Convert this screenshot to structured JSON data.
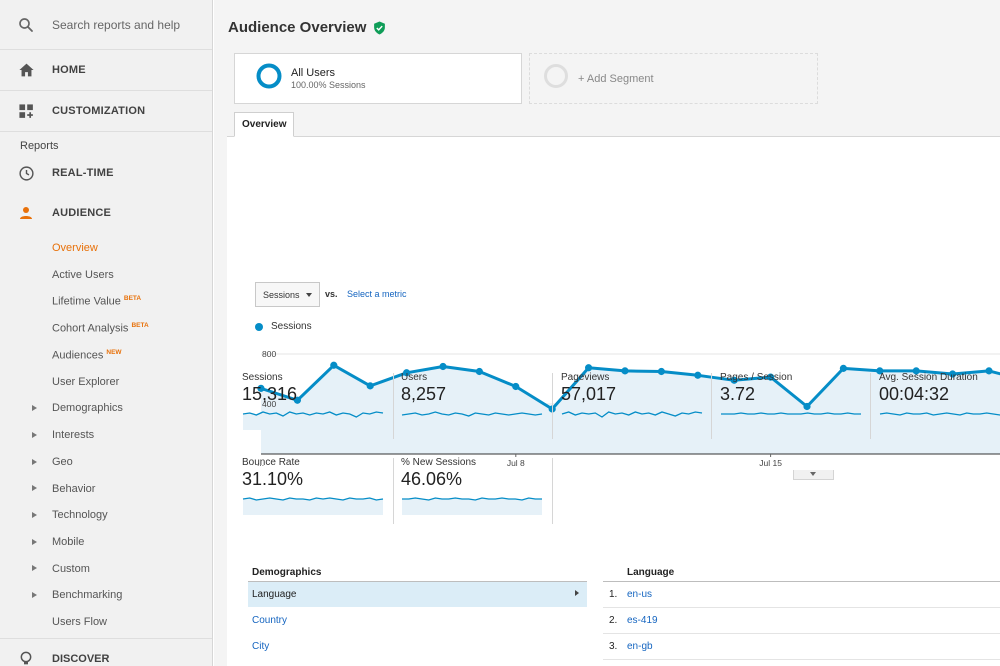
{
  "sidebar": {
    "search_placeholder": "Search reports and help",
    "home": "HOME",
    "customization": "CUSTOMIZATION",
    "reports_heading": "Reports",
    "realtime": "REAL-TIME",
    "audience": "AUDIENCE",
    "audience_items": [
      {
        "label": "Overview",
        "active": true
      },
      {
        "label": "Active Users"
      },
      {
        "label": "Lifetime Value",
        "badge": "BETA"
      },
      {
        "label": "Cohort Analysis",
        "badge": "BETA"
      },
      {
        "label": "Audiences",
        "badge": "NEW"
      },
      {
        "label": "User Explorer"
      },
      {
        "label": "Demographics",
        "expandable": true
      },
      {
        "label": "Interests",
        "expandable": true
      },
      {
        "label": "Geo",
        "expandable": true
      },
      {
        "label": "Behavior",
        "expandable": true
      },
      {
        "label": "Technology",
        "expandable": true
      },
      {
        "label": "Mobile",
        "expandable": true
      },
      {
        "label": "Custom",
        "expandable": true
      },
      {
        "label": "Benchmarking",
        "expandable": true
      },
      {
        "label": "Users Flow"
      }
    ],
    "discover": "DISCOVER"
  },
  "header": {
    "title": "Audience Overview"
  },
  "segments": {
    "active_name": "All Users",
    "active_sub": "100.00% Sessions",
    "add_label": "+ Add Segment"
  },
  "tabs": [
    "Overview"
  ],
  "chart_controls": {
    "metric": "Sessions",
    "vs": "vs.",
    "select_metric": "Select a metric"
  },
  "chart_data": {
    "type": "area",
    "series": [
      {
        "name": "Sessions",
        "values": [
          525,
          430,
          710,
          545,
          650,
          700,
          660,
          540,
          360,
          690,
          665,
          660,
          630,
          590,
          615,
          380,
          685,
          665,
          665,
          640,
          665,
          590
        ]
      }
    ],
    "y_ticks": [
      "800",
      "400"
    ],
    "ylim": [
      0,
      920
    ],
    "x_tick_labels": [
      {
        "index": 0,
        "label": "..."
      },
      {
        "index": 7,
        "label": "Jul 8"
      },
      {
        "index": 14,
        "label": "Jul 15"
      }
    ],
    "color": "#058dc7",
    "fill": "#e6f1f8",
    "grid": true
  },
  "metrics": [
    {
      "name": "Sessions",
      "value": "15,316"
    },
    {
      "name": "Users",
      "value": "8,257"
    },
    {
      "name": "Pageviews",
      "value": "57,017"
    },
    {
      "name": "Pages / Session",
      "value": "3.72"
    },
    {
      "name": "Avg. Session Duration",
      "value": "00:04:32"
    },
    {
      "name": "Bounce Rate",
      "value": "31.10%"
    },
    {
      "name": "% New Sessions",
      "value": "46.06%"
    }
  ],
  "demographics": {
    "heading": "Demographics",
    "rows": [
      "Language",
      "Country",
      "City"
    ]
  },
  "language_table": {
    "heading": "Language",
    "rows": [
      {
        "num": "1.",
        "value": "en-us"
      },
      {
        "num": "2.",
        "value": "es-419"
      },
      {
        "num": "3.",
        "value": "en-gb"
      }
    ]
  },
  "colors": {
    "accent": "#e8710a",
    "series": "#058dc7",
    "link": "#1565c0",
    "verified": "#0f9d58"
  }
}
